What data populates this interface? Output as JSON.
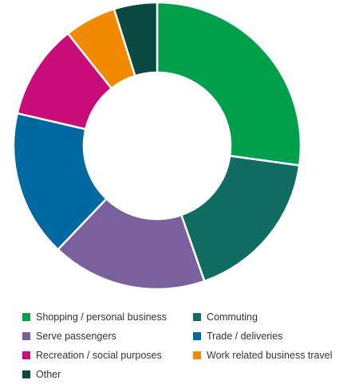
{
  "chart_data": {
    "type": "pie",
    "donut": true,
    "title": "",
    "categories": [
      "Shopping / personal business",
      "Commuting",
      "Serve passengers",
      "Trade / deliveries",
      "Recreation / social purposes",
      "Work related business travel",
      "Other"
    ],
    "values": [
      28,
      18,
      18,
      17,
      11,
      6,
      5
    ],
    "unit": "%",
    "colors": [
      "#00a04b",
      "#116c62",
      "#7a609c",
      "#00699f",
      "#c80c7a",
      "#f18a00",
      "#0b4a42"
    ],
    "legend": "bottom",
    "start": "top",
    "direction": "clockwise"
  },
  "legend": {
    "items": [
      {
        "label": "Shopping / personal business",
        "color": "#00a04b"
      },
      {
        "label": "Commuting",
        "color": "#116c62"
      },
      {
        "label": "Serve passengers",
        "color": "#7a609c"
      },
      {
        "label": "Trade / deliveries",
        "color": "#00699f"
      },
      {
        "label": "Recreation / social purposes",
        "color": "#c80c7a"
      },
      {
        "label": "Work related business travel",
        "color": "#f18a00"
      },
      {
        "label": "Other",
        "color": "#0b4a42"
      }
    ]
  }
}
